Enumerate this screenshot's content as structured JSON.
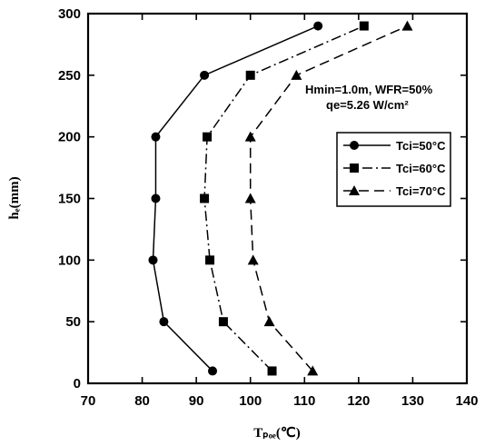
{
  "chart_data": {
    "type": "line",
    "title": "",
    "xlabel": "Tₚₒₑ(℃)",
    "ylabel": "hₑ(mm)",
    "xlim": [
      70,
      140
    ],
    "ylim": [
      0,
      300
    ],
    "xticks": [
      70,
      80,
      90,
      100,
      110,
      120,
      130,
      140
    ],
    "yticks": [
      0,
      50,
      100,
      150,
      200,
      250,
      300
    ],
    "grid": false,
    "legend_position": "right",
    "annotations": [
      "Hmin=1.0m, WFR=50%",
      "qe=5.26 W/cm²"
    ],
    "series": [
      {
        "name": "Tci=50°C",
        "marker": "circle",
        "line_style": "solid",
        "points": [
          [
            93,
            10
          ],
          [
            84,
            50
          ],
          [
            82,
            100
          ],
          [
            82.5,
            150
          ],
          [
            82.5,
            200
          ],
          [
            91.5,
            250
          ],
          [
            112.5,
            290
          ]
        ]
      },
      {
        "name": "Tci=60°C",
        "marker": "square",
        "line_style": "dash-dot",
        "points": [
          [
            104,
            10
          ],
          [
            95,
            50
          ],
          [
            92.5,
            100
          ],
          [
            91.5,
            150
          ],
          [
            92,
            200
          ],
          [
            100,
            250
          ],
          [
            121,
            290
          ]
        ]
      },
      {
        "name": "Tci=70°C",
        "marker": "triangle",
        "line_style": "dashed",
        "points": [
          [
            111.5,
            10
          ],
          [
            103.5,
            50
          ],
          [
            100.5,
            100
          ],
          [
            100,
            150
          ],
          [
            100,
            200
          ],
          [
            108.5,
            250
          ],
          [
            129,
            290
          ]
        ]
      }
    ]
  },
  "labels": {
    "annotation_line1": "Hmin=1.0m, WFR=50%",
    "annotation_line2": "qe=5.26 W/cm²",
    "legend": [
      "Tci=50°C",
      "Tci=60°C",
      "Tci=70°C"
    ],
    "xlabel": "Tₚₒₑ(℃)",
    "ylabel": "hₑ(mm)"
  }
}
